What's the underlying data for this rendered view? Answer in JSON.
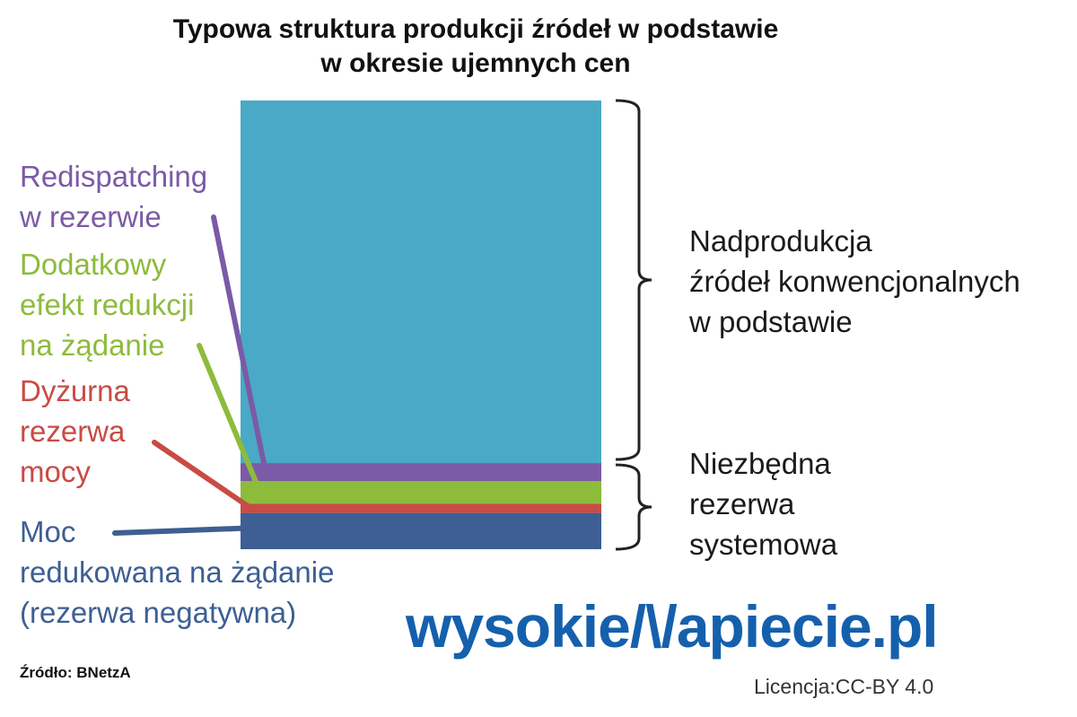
{
  "title": {
    "line1": "Typowa struktura produkcji źródeł w podstawie",
    "line2": "w okresie ujemnych cen"
  },
  "chart_data": {
    "type": "bar",
    "stacked": true,
    "segments": [
      {
        "key": "moc",
        "label_lines": [
          "Moc",
          "redukowana na żądanie",
          "(rezerwa negatywna)"
        ],
        "value": 4,
        "color": "#3d5f93"
      },
      {
        "key": "dyzurna",
        "label_lines": [
          "Dyżurna",
          "rezerwa",
          "mocy"
        ],
        "value": 1,
        "color": "#c94b44"
      },
      {
        "key": "dodatkowy",
        "label_lines": [
          "Dodatkowy",
          "efekt redukcji",
          "na żądanie"
        ],
        "value": 2.5,
        "color": "#8dbb3c"
      },
      {
        "key": "redispatch",
        "label_lines": [
          "Redispatching",
          "w rezerwie"
        ],
        "value": 2,
        "color": "#7b5aa6"
      },
      {
        "key": "nadprod",
        "label_lines": [],
        "value": 40,
        "color": "#4aa9c6"
      }
    ],
    "braces": [
      {
        "label_lines": [
          "Nadprodukcja",
          "źródeł konwencjonalnych",
          "w podstawie"
        ],
        "covers": [
          "nadprod"
        ]
      },
      {
        "label_lines": [
          "Niezbędna",
          "rezerwa",
          "systemowa"
        ],
        "covers": [
          "moc",
          "dyzurna",
          "dodatkowy",
          "redispatch"
        ]
      }
    ]
  },
  "source": "Źródło: BNetzA",
  "logo": {
    "part1": "wysokie",
    "part2": "apiecie.pl"
  },
  "license": "Licencja:CC-BY 4.0"
}
